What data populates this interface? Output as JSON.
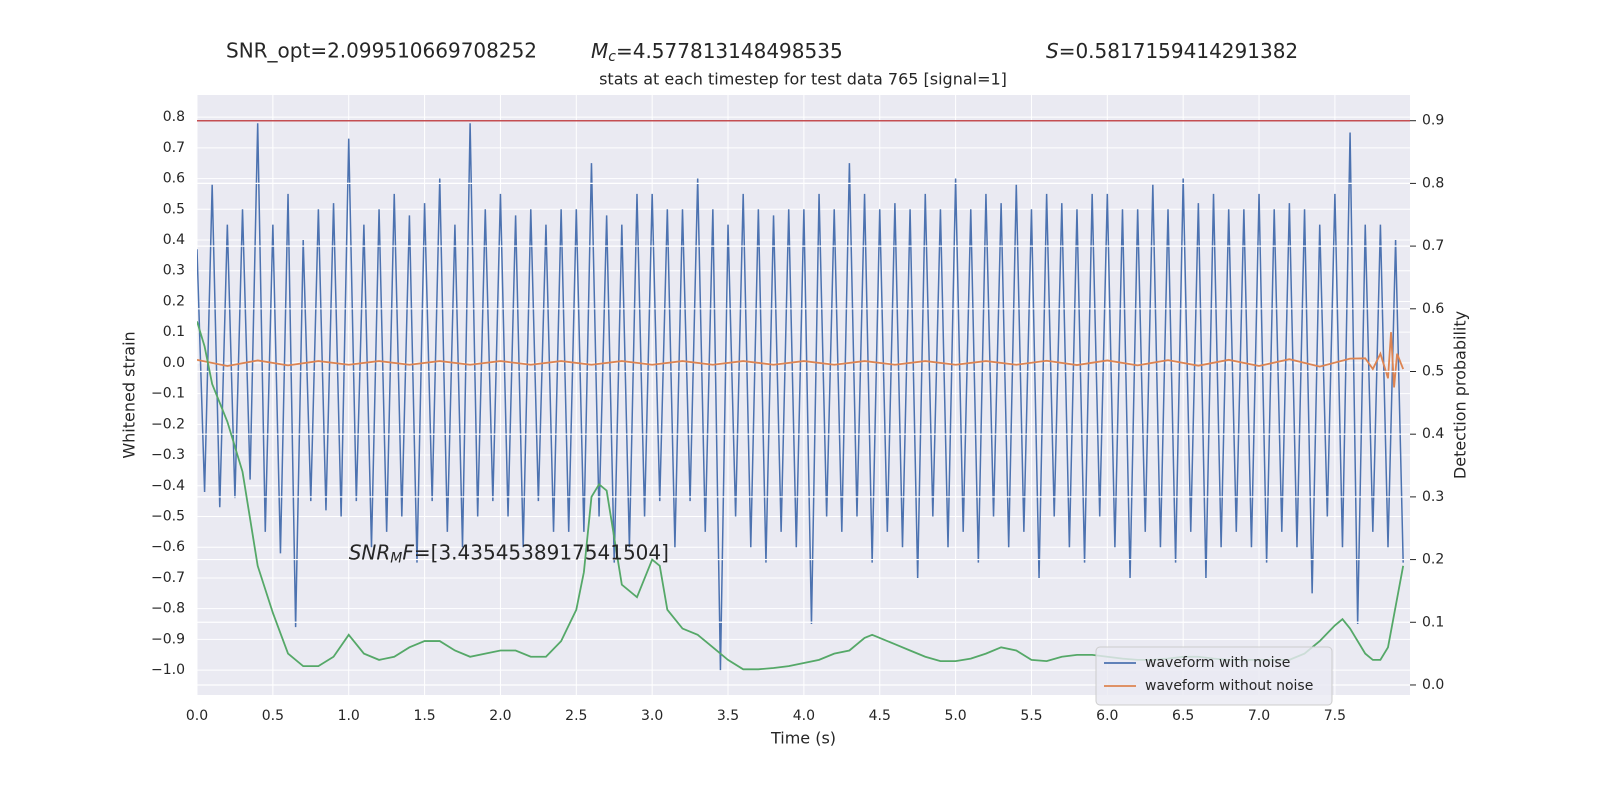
{
  "chart_data": {
    "type": "line",
    "title": "stats at each timestep for test data 765 [signal=1]",
    "annotations": [
      {
        "text": "SNR_opt=2.099510669708252"
      },
      {
        "symbol": "M",
        "subscript": "c",
        "text": "=4.577813148498535"
      },
      {
        "symbol": "S",
        "text": "=0.5817159414291382"
      },
      {
        "symbol": "SNR",
        "subscript": "M",
        "suffix": "F",
        "text": "=[3.4354538917541504]"
      }
    ],
    "xlabel": "Time (s)",
    "ylabel": "Whitened strain",
    "y2label": "Detection probability",
    "xlim": [
      0,
      7.995
    ],
    "ylim": [
      -1.081,
      0.872
    ],
    "y2lim": [
      -0.016,
      0.941
    ],
    "xticks": [
      {
        "value": 0,
        "label": "0.0"
      },
      0.5,
      {
        "value": 1,
        "label": "1.0"
      },
      1.5,
      {
        "value": 2,
        "label": "2.0"
      },
      2.5,
      {
        "value": 3,
        "label": "3.0"
      },
      3.5,
      {
        "value": 4,
        "label": "4.0"
      },
      4.5,
      {
        "value": 5,
        "label": "5.0"
      },
      5.5,
      {
        "value": 6,
        "label": "6.0"
      },
      6.5,
      {
        "value": 7,
        "label": "7.0"
      },
      7.5
    ],
    "yticks": [
      {
        "value": -1,
        "label": "−1.0"
      },
      {
        "value": -0.9,
        "label": "−0.9"
      },
      {
        "value": -0.8,
        "label": "−0.8"
      },
      {
        "value": -0.7,
        "label": "−0.7"
      },
      {
        "value": -0.6,
        "label": "−0.6"
      },
      {
        "value": -0.5,
        "label": "−0.5"
      },
      {
        "value": -0.4,
        "label": "−0.4"
      },
      {
        "value": -0.3,
        "label": "−0.3"
      },
      {
        "value": -0.2,
        "label": "−0.2"
      },
      {
        "value": -0.1,
        "label": "−0.1"
      },
      {
        "value": 0,
        "label": "0.0"
      },
      0.1,
      0.2,
      0.3,
      0.4,
      0.5,
      0.6,
      0.7,
      0.8
    ],
    "y2ticks": [
      {
        "value": 0,
        "label": "0.0"
      },
      0.1,
      0.2,
      0.3,
      0.4,
      0.5,
      0.6,
      0.7,
      0.8,
      0.9
    ],
    "grid": true,
    "legend": "lower right",
    "series": [
      {
        "name": "waveform with noise",
        "color": "#4c72b0",
        "x": [
          0,
          0.05,
          0.1,
          0.15,
          0.2,
          0.25,
          0.3,
          0.35,
          0.4,
          0.45,
          0.5,
          0.55,
          0.6,
          0.65,
          0.7,
          0.75,
          0.8,
          0.85,
          0.9,
          0.95,
          1,
          1.05,
          1.1,
          1.15,
          1.2,
          1.25,
          1.3,
          1.35,
          1.4,
          1.45,
          1.5,
          1.55,
          1.6,
          1.65,
          1.7,
          1.75,
          1.8,
          1.85,
          1.9,
          1.95,
          2,
          2.05,
          2.1,
          2.15,
          2.2,
          2.25,
          2.3,
          2.35,
          2.4,
          2.45,
          2.5,
          2.55,
          2.6,
          2.65,
          2.7,
          2.75,
          2.8,
          2.85,
          2.9,
          2.95,
          3,
          3.05,
          3.1,
          3.15,
          3.2,
          3.25,
          3.3,
          3.35,
          3.4,
          3.45,
          3.5,
          3.55,
          3.6,
          3.65,
          3.7,
          3.75,
          3.8,
          3.85,
          3.9,
          3.95,
          4,
          4.05,
          4.1,
          4.15,
          4.2,
          4.25,
          4.3,
          4.35,
          4.4,
          4.45,
          4.5,
          4.55,
          4.6,
          4.65,
          4.7,
          4.75,
          4.8,
          4.85,
          4.9,
          4.95,
          5,
          5.05,
          5.1,
          5.15,
          5.2,
          5.25,
          5.3,
          5.35,
          5.4,
          5.45,
          5.5,
          5.55,
          5.6,
          5.65,
          5.7,
          5.75,
          5.8,
          5.85,
          5.9,
          5.95,
          6,
          6.05,
          6.1,
          6.15,
          6.2,
          6.25,
          6.3,
          6.35,
          6.4,
          6.45,
          6.5,
          6.55,
          6.6,
          6.65,
          6.7,
          6.75,
          6.8,
          6.85,
          6.9,
          6.95,
          7,
          7.05,
          7.1,
          7.15,
          7.2,
          7.25,
          7.3,
          7.35,
          7.4,
          7.45,
          7.5,
          7.55,
          7.6,
          7.65,
          7.7,
          7.75,
          7.8,
          7.85,
          7.9,
          7.95
        ],
        "values": [
          0.37,
          -0.42,
          0.58,
          -0.47,
          0.45,
          -0.44,
          0.5,
          -0.38,
          0.78,
          -0.55,
          0.45,
          -0.62,
          0.55,
          -0.86,
          0.4,
          -0.45,
          0.5,
          -0.48,
          0.52,
          -0.5,
          0.73,
          -0.45,
          0.45,
          -0.6,
          0.5,
          -0.55,
          0.55,
          -0.5,
          0.48,
          -0.65,
          0.52,
          -0.45,
          0.6,
          -0.55,
          0.45,
          -0.6,
          0.78,
          -0.5,
          0.5,
          -0.45,
          0.55,
          -0.5,
          0.48,
          -0.6,
          0.5,
          -0.45,
          0.45,
          -0.55,
          0.5,
          -0.55,
          0.5,
          -0.55,
          0.65,
          -0.5,
          0.48,
          -0.65,
          0.45,
          -0.6,
          0.55,
          -0.5,
          0.55,
          -0.45,
          0.5,
          -0.6,
          0.5,
          -0.45,
          0.6,
          -0.55,
          0.5,
          -1.0,
          0.45,
          -0.5,
          0.55,
          -0.6,
          0.5,
          -0.65,
          0.48,
          -0.55,
          0.5,
          -0.6,
          0.5,
          -0.85,
          0.55,
          -0.5,
          0.5,
          -0.55,
          0.65,
          -0.5,
          0.55,
          -0.65,
          0.5,
          -0.55,
          0.52,
          -0.6,
          0.5,
          -0.7,
          0.55,
          -0.5,
          0.5,
          -0.6,
          0.6,
          -0.55,
          0.5,
          -0.65,
          0.55,
          -0.5,
          0.52,
          -0.6,
          0.58,
          -0.55,
          0.5,
          -0.7,
          0.55,
          -0.5,
          0.52,
          -0.6,
          0.5,
          -0.65,
          0.55,
          -0.5,
          0.55,
          -0.6,
          0.5,
          -0.7,
          0.5,
          -0.55,
          0.58,
          -0.6,
          0.5,
          -0.65,
          0.6,
          -0.55,
          0.52,
          -0.7,
          0.55,
          -0.6,
          0.5,
          -0.55,
          0.5,
          -0.6,
          0.55,
          -0.65,
          0.5,
          -0.55,
          0.52,
          -0.6,
          0.5,
          -0.75,
          0.45,
          -0.5,
          0.55,
          -0.6,
          0.75,
          -0.85,
          0.45,
          -0.55,
          0.45,
          -0.6,
          0.4,
          -0.65
        ]
      },
      {
        "name": "waveform without noise",
        "color": "#dd8452",
        "x": [
          0,
          0.2,
          0.4,
          0.6,
          0.8,
          1,
          1.2,
          1.4,
          1.6,
          1.8,
          2,
          2.2,
          2.4,
          2.6,
          2.8,
          3,
          3.2,
          3.4,
          3.6,
          3.8,
          4,
          4.2,
          4.4,
          4.6,
          4.8,
          5,
          5.2,
          5.4,
          5.6,
          5.8,
          6,
          6.2,
          6.4,
          6.6,
          6.8,
          7,
          7.2,
          7.4,
          7.6,
          7.7,
          7.75,
          7.8,
          7.85,
          7.87,
          7.89,
          7.91,
          7.95
        ],
        "values": [
          0.01,
          -0.01,
          0.008,
          -0.008,
          0.006,
          -0.006,
          0.006,
          -0.006,
          0.006,
          -0.006,
          0.006,
          -0.006,
          0.006,
          -0.006,
          0.006,
          -0.006,
          0.006,
          -0.006,
          0.006,
          -0.006,
          0.006,
          -0.006,
          0.006,
          -0.006,
          0.006,
          -0.006,
          0.006,
          -0.006,
          0.007,
          -0.007,
          0.008,
          -0.008,
          0.009,
          -0.009,
          0.01,
          -0.01,
          0.012,
          -0.012,
          0.014,
          0.015,
          -0.02,
          0.03,
          -0.05,
          0.1,
          -0.08,
          0.03,
          -0.02
        ]
      },
      {
        "color": "#55a868",
        "axis": "y2",
        "x": [
          0,
          0.05,
          0.1,
          0.2,
          0.3,
          0.4,
          0.5,
          0.6,
          0.7,
          0.8,
          0.9,
          1,
          1.1,
          1.2,
          1.3,
          1.4,
          1.5,
          1.6,
          1.7,
          1.8,
          1.9,
          2,
          2.1,
          2.2,
          2.3,
          2.4,
          2.5,
          2.55,
          2.6,
          2.65,
          2.7,
          2.8,
          2.9,
          3,
          3.05,
          3.1,
          3.2,
          3.3,
          3.4,
          3.5,
          3.6,
          3.7,
          3.8,
          3.9,
          4,
          4.1,
          4.2,
          4.3,
          4.4,
          4.45,
          4.5,
          4.6,
          4.7,
          4.8,
          4.9,
          5,
          5.1,
          5.2,
          5.3,
          5.4,
          5.5,
          5.6,
          5.7,
          5.8,
          5.9,
          6,
          6.1,
          6.2,
          6.3,
          6.4,
          6.5,
          6.6,
          6.7,
          6.8,
          6.9,
          7,
          7.1,
          7.2,
          7.3,
          7.4,
          7.5,
          7.55,
          7.6,
          7.7,
          7.75,
          7.8,
          7.85,
          7.95
        ],
        "values": [
          0.58,
          0.54,
          0.48,
          0.42,
          0.34,
          0.19,
          0.115,
          0.05,
          0.03,
          0.03,
          0.045,
          0.08,
          0.05,
          0.04,
          0.045,
          0.06,
          0.07,
          0.07,
          0.055,
          0.045,
          0.05,
          0.055,
          0.055,
          0.045,
          0.045,
          0.07,
          0.12,
          0.18,
          0.3,
          0.32,
          0.31,
          0.16,
          0.14,
          0.2,
          0.19,
          0.12,
          0.09,
          0.08,
          0.06,
          0.04,
          0.025,
          0.025,
          0.027,
          0.03,
          0.035,
          0.04,
          0.05,
          0.055,
          0.075,
          0.08,
          0.075,
          0.065,
          0.055,
          0.045,
          0.038,
          0.038,
          0.042,
          0.05,
          0.06,
          0.055,
          0.04,
          0.038,
          0.045,
          0.048,
          0.048,
          0.045,
          0.042,
          0.04,
          0.04,
          0.042,
          0.045,
          0.045,
          0.042,
          0.04,
          0.04,
          0.04,
          0.04,
          0.04,
          0.05,
          0.07,
          0.095,
          0.105,
          0.09,
          0.05,
          0.04,
          0.04,
          0.06,
          0.19
        ]
      }
    ],
    "hlines": [
      {
        "value": 0.9,
        "axis": "y2",
        "color": "#c44e52"
      }
    ]
  }
}
